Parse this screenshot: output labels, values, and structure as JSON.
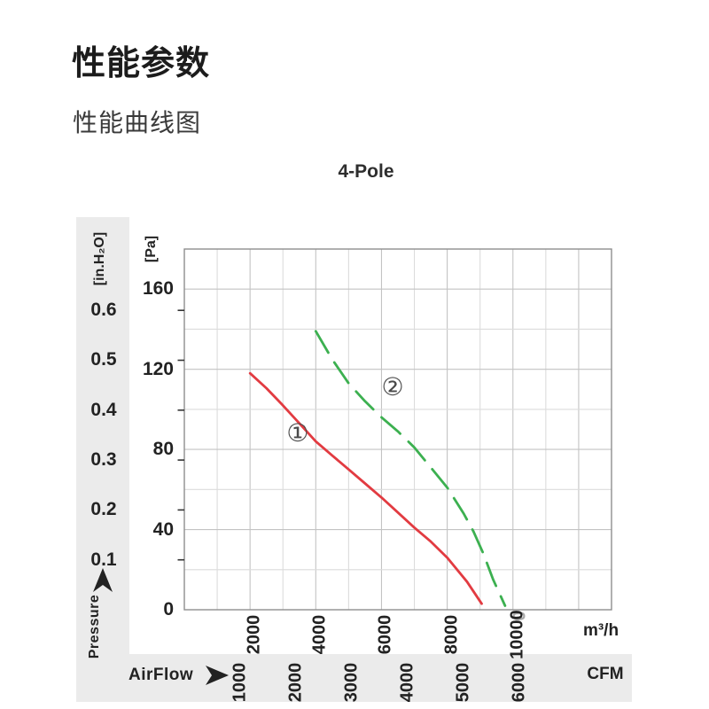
{
  "page": {
    "heading": "性能参数",
    "subheading": "性能曲线图"
  },
  "chart_data": {
    "type": "line",
    "title": "4-Pole",
    "x_axis": {
      "label": "AirFlow",
      "unit_top": "m³/h",
      "unit_bottom": "CFM",
      "range_m3h": [
        0,
        13000
      ],
      "grid_step_m3h": 1000,
      "ticks_m3h": [
        2000,
        4000,
        6000,
        8000,
        10000
      ],
      "ticks_cfm": [
        1000,
        2000,
        3000,
        4000,
        5000,
        6000
      ],
      "cfm_to_m3h": 1.699,
      "ghost_char": "0"
    },
    "y_axis": {
      "label": "Pressure",
      "unit_inner": "[Pa]",
      "unit_outer": "[in.H₂O]",
      "range_pa": [
        0,
        180
      ],
      "grid_step_pa": 20,
      "ticks_pa": [
        160,
        120,
        80,
        40,
        0
      ],
      "ticks_inh2o": [
        0.6,
        0.5,
        0.4,
        0.3,
        0.2,
        0.1
      ],
      "inh2o_to_pa": 249
    },
    "series": [
      {
        "name": "curve-1",
        "label": "①",
        "color": "#e23b41",
        "dash": "none",
        "points_m3h_pa": [
          [
            2000,
            118
          ],
          [
            2500,
            110.5
          ],
          [
            3000,
            102
          ],
          [
            3500,
            93
          ],
          [
            4000,
            84
          ],
          [
            4500,
            77
          ],
          [
            5000,
            70
          ],
          [
            5500,
            63
          ],
          [
            6000,
            56
          ],
          [
            6500,
            48.5
          ],
          [
            7000,
            41
          ],
          [
            7500,
            34
          ],
          [
            8000,
            26
          ],
          [
            8600,
            14
          ],
          [
            9050,
            3
          ]
        ]
      },
      {
        "name": "curve-2",
        "label": "②",
        "color": "#3cb050",
        "dash": "28 13",
        "points_m3h_pa": [
          [
            4000,
            139
          ],
          [
            4500,
            125
          ],
          [
            5000,
            113
          ],
          [
            5500,
            104
          ],
          [
            6000,
            96
          ],
          [
            6500,
            89
          ],
          [
            7000,
            81
          ],
          [
            7500,
            71
          ],
          [
            8000,
            61
          ],
          [
            8500,
            48
          ],
          [
            8800,
            39
          ],
          [
            9100,
            28
          ],
          [
            9400,
            15
          ],
          [
            9760,
            2
          ]
        ]
      }
    ],
    "series_labels": [
      {
        "text": "①",
        "m3h": 3450,
        "pa": 88
      },
      {
        "text": "②",
        "m3h": 6340,
        "pa": 111
      }
    ],
    "colors": {
      "grid_minor": "#dcdcdc",
      "grid_major": "#c3c3c3",
      "frame": "#8e8e8e",
      "strip": "#ebebeb",
      "curve1_red": "#e23b41",
      "curve2_green": "#3cb050",
      "text": "#1f1f1f",
      "ghost_gray": "#a9a9a9"
    }
  }
}
